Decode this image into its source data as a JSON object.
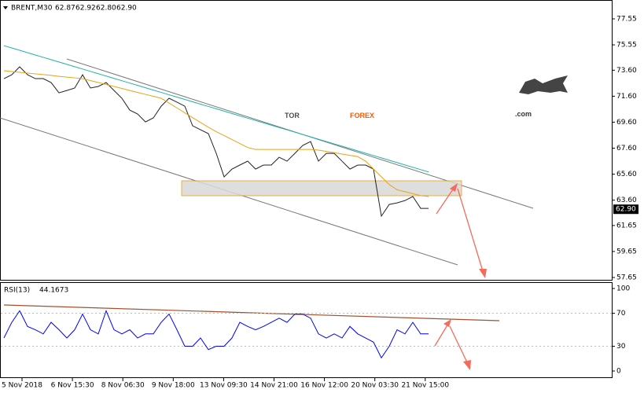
{
  "chart_data": [
    {
      "type": "line",
      "symbol": "BRENT,M30",
      "ohlc": [
        62.87,
        62.92,
        {
          "value": 62.8,
          "label": "62.80"
        },
        {
          "value": 62.9,
          "label": "62.90"
        }
      ],
      "brand": [
        "TOR",
        "FOREX",
        ".com"
      ],
      "last_price": {
        "value": 62.9,
        "label": "62.90"
      },
      "xticks": [
        "5 Nov 2018",
        "6 Nov 15:30",
        "8 Nov 06:30",
        "9 Nov 18:00",
        "13 Nov 09:30",
        "14 Nov 21:00",
        "16 Nov 12:00",
        "20 Nov 03:30",
        "21 Nov 15:00"
      ],
      "ylim": [
        57.47,
        78.82
      ],
      "yticks": [
        77.55,
        75.55,
        {
          "value": 73.6,
          "label": "73.60"
        },
        {
          "value": 71.6,
          "label": "71.60"
        },
        {
          "value": 69.6,
          "label": "69.60"
        },
        {
          "value": 67.6,
          "label": "67.60"
        },
        {
          "value": 65.6,
          "label": "65.60"
        },
        {
          "value": 63.6,
          "label": "63.60"
        },
        61.65,
        59.65,
        57.65
      ],
      "grid": false,
      "series": [
        {
          "color": "#222222",
          "values": [
            72.95,
            73.25,
            73.86,
            73.25,
            72.95,
            72.95,
            72.65,
            71.86,
            72.04,
            72.23,
            73.25,
            72.23,
            72.35,
            72.65,
            72.04,
            71.44,
            70.53,
            70.23,
            69.62,
            69.93,
            70.83,
            71.44,
            71.14,
            70.83,
            69.32,
            69.02,
            68.72,
            67.2,
            65.39,
            65.99,
            66.3,
            66.6,
            65.99,
            66.3,
            66.3,
            66.9,
            66.6,
            67.2,
            67.81,
            68.11,
            66.6,
            67.2,
            67.2,
            66.6,
            65.99,
            66.3,
            66.3,
            65.99,
            62.37,
            63.27,
            63.39,
            63.57,
            63.88,
            62.97,
            62.97
          ]
        },
        {
          "color": "#20b2aa",
          "values": [
            75.49,
            75.31,
            75.13,
            74.95,
            74.77,
            74.59,
            74.41,
            74.23,
            74.05,
            73.87,
            73.69,
            73.51,
            73.33,
            73.15,
            72.97,
            72.79,
            72.61,
            72.43,
            72.25,
            72.07,
            71.89,
            71.71,
            71.53,
            71.35,
            71.17,
            70.99,
            70.81,
            70.63,
            70.45,
            70.27,
            70.09,
            69.91,
            69.73,
            69.55,
            69.37,
            69.19,
            69.01,
            68.83,
            68.65,
            68.47,
            68.29,
            68.11,
            67.93,
            67.75,
            67.57,
            67.39,
            67.21,
            67.03,
            66.85,
            66.67,
            66.49,
            66.31,
            66.13,
            65.95,
            65.77
          ]
        },
        {
          "color": "#e8a317",
          "values": [
            73.56,
            73.5,
            73.44,
            73.38,
            73.32,
            73.26,
            73.2,
            73.13,
            73.07,
            73.01,
            72.95,
            72.8,
            72.65,
            72.5,
            72.35,
            72.2,
            72.04,
            71.89,
            71.74,
            71.59,
            71.44,
            71.07,
            70.7,
            70.32,
            69.95,
            69.58,
            69.21,
            68.87,
            68.57,
            68.26,
            67.96,
            67.65,
            67.5,
            67.5,
            67.5,
            67.5,
            67.5,
            67.5,
            67.5,
            67.5,
            67.45,
            67.35,
            67.25,
            67.15,
            67.05,
            66.95,
            66.6,
            66.0,
            65.4,
            64.8,
            64.4,
            64.25,
            64.1,
            63.95,
            63.88
          ]
        }
      ]
    },
    {
      "type": "line",
      "indicator": "RSI(13)",
      "indicator_value": 44.1673,
      "ylim": [
        -7.6,
        106.7
      ],
      "yticks": [
        100,
        70,
        30,
        0
      ],
      "series": [
        {
          "color": "#0000ff",
          "values": [
            40,
            59,
            73,
            54,
            50,
            45,
            59,
            50,
            40,
            50,
            69,
            50,
            45,
            73,
            50,
            45,
            50,
            40,
            45,
            45,
            59,
            69,
            50,
            30,
            30,
            40,
            26,
            30,
            30,
            40,
            59,
            54,
            50,
            54,
            59,
            64,
            59,
            69,
            69,
            64,
            45,
            40,
            45,
            40,
            54,
            45,
            40,
            35,
            16,
            30,
            50,
            45,
            59,
            45,
            45
          ]
        }
      ]
    }
  ]
}
